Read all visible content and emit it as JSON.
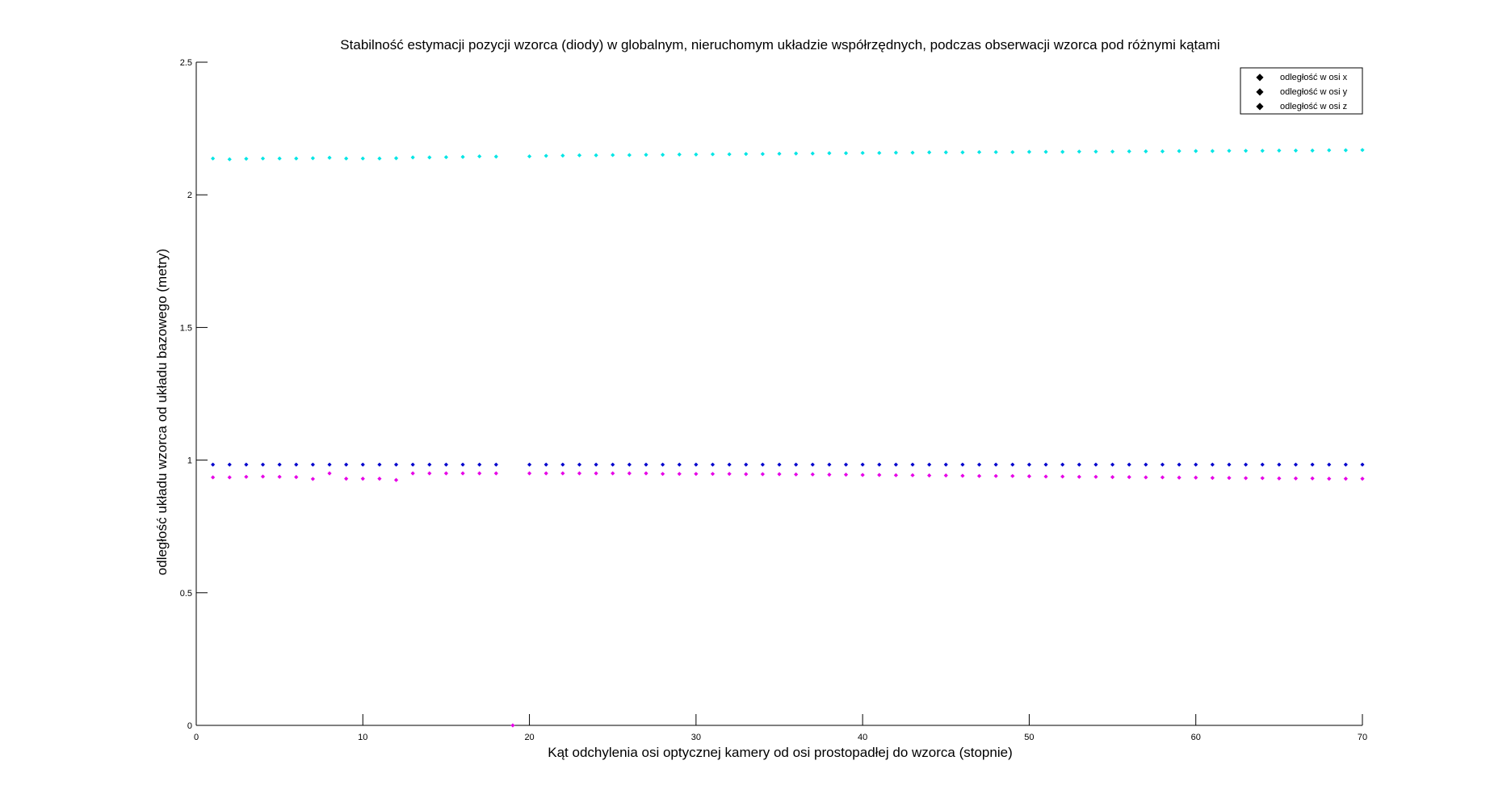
{
  "chart_data": {
    "type": "scatter",
    "title": "Stabilność estymacji pozycji wzorca (diody) w globalnym, nieruchomym układzie współrzędnych, podczas obserwacji wzorca pod różnymi kątami",
    "xlabel": "Kąt odchylenia osi optycznej kamery od osi prostopadłej do wzorca (stopnie)",
    "ylabel": "odległość układu wzorca od układu bazowego (metry)",
    "xlim": [
      0,
      70
    ],
    "ylim": [
      0,
      2.5
    ],
    "xticks": [
      0,
      10,
      20,
      30,
      40,
      50,
      60,
      70
    ],
    "yticks": [
      0,
      0.5,
      1,
      1.5,
      2,
      2.5
    ],
    "xtick_labels": [
      "0",
      "10",
      "20",
      "30",
      "40",
      "50",
      "60",
      "70"
    ],
    "ytick_labels": [
      "0",
      "0.5",
      "1",
      "1.5",
      "2",
      "2.5"
    ],
    "grid": false,
    "legend_position": "top-right",
    "x": [
      1,
      2,
      3,
      4,
      5,
      6,
      7,
      8,
      9,
      10,
      11,
      12,
      13,
      14,
      15,
      16,
      17,
      18,
      19,
      20,
      21,
      22,
      23,
      24,
      25,
      26,
      27,
      28,
      29,
      30,
      31,
      32,
      33,
      34,
      35,
      36,
      37,
      38,
      39,
      40,
      41,
      42,
      43,
      44,
      45,
      46,
      47,
      48,
      49,
      50,
      51,
      52,
      53,
      54,
      55,
      56,
      57,
      58,
      59,
      60,
      61,
      62,
      63,
      64,
      65,
      66,
      67,
      68,
      69,
      70
    ],
    "series": [
      {
        "name": "odległość w osi x",
        "color": "#0000cc",
        "values": [
          0.983,
          0.983,
          0.983,
          0.983,
          0.983,
          0.983,
          0.983,
          0.983,
          0.983,
          0.983,
          0.983,
          0.983,
          0.983,
          0.983,
          0.983,
          0.983,
          0.983,
          0.983,
          null,
          0.983,
          0.983,
          0.983,
          0.983,
          0.983,
          0.983,
          0.983,
          0.983,
          0.983,
          0.983,
          0.983,
          0.983,
          0.983,
          0.983,
          0.983,
          0.983,
          0.983,
          0.983,
          0.983,
          0.983,
          0.983,
          0.983,
          0.983,
          0.983,
          0.983,
          0.983,
          0.983,
          0.983,
          0.983,
          0.983,
          0.983,
          0.983,
          0.983,
          0.983,
          0.983,
          0.983,
          0.983,
          0.983,
          0.983,
          0.983,
          0.983,
          0.983,
          0.983,
          0.983,
          0.983,
          0.983,
          0.983,
          0.983,
          0.983,
          0.983,
          0.983
        ]
      },
      {
        "name": "odległość w osi y",
        "color": "#00e5e5",
        "values": [
          2.137,
          2.134,
          2.136,
          2.137,
          2.137,
          2.137,
          2.138,
          2.14,
          2.137,
          2.137,
          2.137,
          2.138,
          2.141,
          2.141,
          2.142,
          2.143,
          2.145,
          2.144,
          null,
          2.145,
          2.147,
          2.148,
          2.149,
          2.149,
          2.15,
          2.15,
          2.151,
          2.151,
          2.152,
          2.152,
          2.153,
          2.153,
          2.154,
          2.154,
          2.155,
          2.156,
          2.156,
          2.157,
          2.157,
          2.158,
          2.158,
          2.159,
          2.159,
          2.16,
          2.16,
          2.16,
          2.161,
          2.161,
          2.161,
          2.162,
          2.162,
          2.162,
          2.163,
          2.163,
          2.163,
          2.164,
          2.164,
          2.164,
          2.165,
          2.165,
          2.165,
          2.166,
          2.166,
          2.166,
          2.167,
          2.167,
          2.167,
          2.168,
          2.168,
          2.169
        ]
      },
      {
        "name": "odległość w osi z",
        "color": "#e600e6",
        "values": [
          0.935,
          0.935,
          0.937,
          0.938,
          0.937,
          0.936,
          0.929,
          0.95,
          0.93,
          0.93,
          0.93,
          0.925,
          0.95,
          0.95,
          0.95,
          0.95,
          0.95,
          0.95,
          0.0,
          0.95,
          0.95,
          0.95,
          0.95,
          0.95,
          0.95,
          0.95,
          0.95,
          0.948,
          0.948,
          0.948,
          0.948,
          0.948,
          0.947,
          0.947,
          0.947,
          0.946,
          0.946,
          0.945,
          0.945,
          0.944,
          0.944,
          0.943,
          0.943,
          0.942,
          0.942,
          0.941,
          0.94,
          0.94,
          0.94,
          0.939,
          0.938,
          0.938,
          0.937,
          0.937,
          0.936,
          0.936,
          0.935,
          0.935,
          0.934,
          0.934,
          0.933,
          0.933,
          0.932,
          0.932,
          0.931,
          0.931,
          0.931,
          0.93,
          0.93,
          0.93
        ]
      }
    ]
  }
}
